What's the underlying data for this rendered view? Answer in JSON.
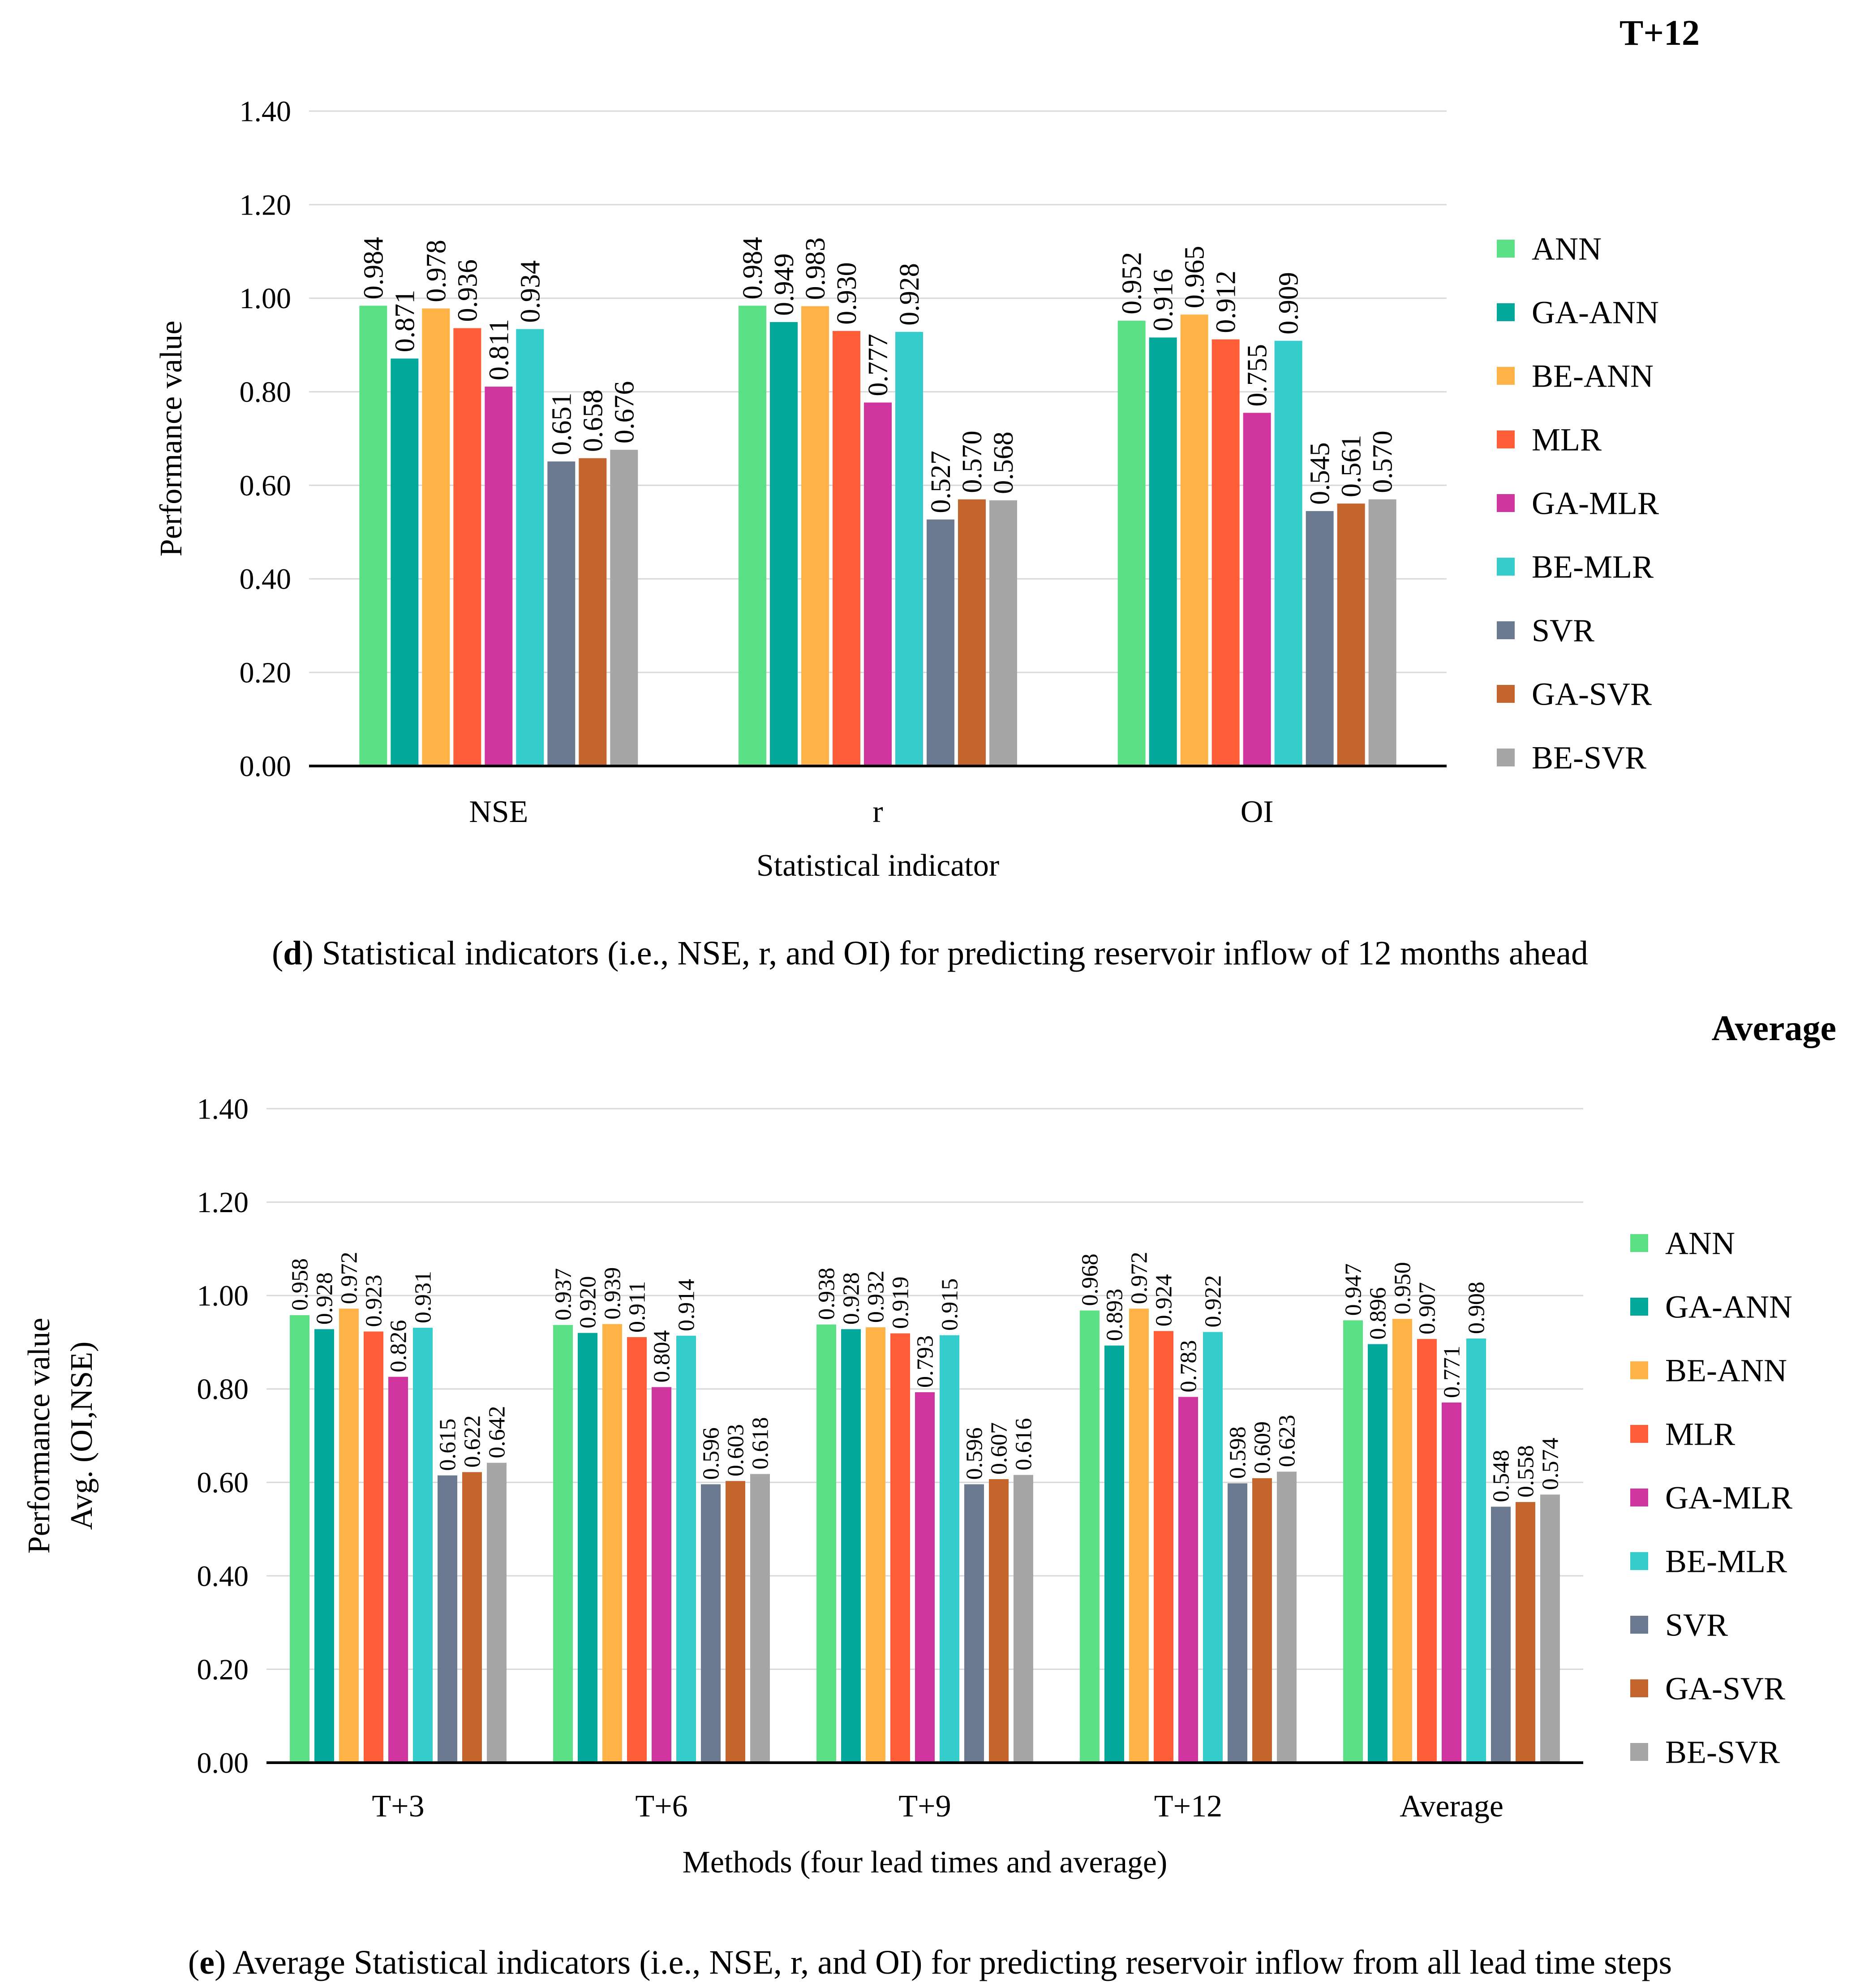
{
  "palette": {
    "ANN": "#5ce086",
    "GA-ANN": "#02a89a",
    "BE-ANN": "#ffb347",
    "MLR": "#ff5c38",
    "GA-MLR": "#d0349e",
    "BE-MLR": "#34cdcb",
    "SVR": "#6c7a91",
    "GA-SVR": "#c4652e",
    "BE-SVR": "#a6a6a6"
  },
  "chart_data": [
    {
      "type": "bar",
      "title": "T+12",
      "xlabel": "Statistical indicator",
      "ylabel": "Performance value",
      "ylim": [
        0,
        1.4
      ],
      "yticks": [
        "0.00",
        "0.20",
        "0.40",
        "0.60",
        "0.80",
        "1.00",
        "1.20",
        "1.40"
      ],
      "grid": true,
      "legend": "right",
      "categories": [
        "NSE",
        "r",
        "OI"
      ],
      "series": [
        {
          "name": "ANN",
          "values": [
            0.984,
            0.984,
            0.952
          ],
          "labels": [
            "0.984",
            "0.984",
            "0.952"
          ]
        },
        {
          "name": "GA-ANN",
          "values": [
            0.871,
            0.949,
            0.916
          ],
          "labels": [
            "0.871",
            "0.949",
            "0.916"
          ]
        },
        {
          "name": "BE-ANN",
          "values": [
            0.978,
            0.983,
            0.965
          ],
          "labels": [
            "0.978",
            "0.983",
            "0.965"
          ]
        },
        {
          "name": "MLR",
          "values": [
            0.936,
            0.93,
            0.912
          ],
          "labels": [
            "0.936",
            "0.930",
            "0.912"
          ]
        },
        {
          "name": "GA-MLR",
          "values": [
            0.811,
            0.777,
            0.755
          ],
          "labels": [
            "0.811",
            "0.777",
            "0.755"
          ]
        },
        {
          "name": "BE-MLR",
          "values": [
            0.934,
            0.928,
            0.909
          ],
          "labels": [
            "0.934",
            "0.928",
            "0.909"
          ]
        },
        {
          "name": "SVR",
          "values": [
            0.651,
            0.527,
            0.545
          ],
          "labels": [
            "0.651",
            "0.527",
            "0.545"
          ]
        },
        {
          "name": "GA-SVR",
          "values": [
            0.658,
            0.57,
            0.561
          ],
          "labels": [
            "0.658",
            "0.570",
            "0.561"
          ]
        },
        {
          "name": "BE-SVR",
          "values": [
            0.676,
            0.568,
            0.57
          ],
          "labels": [
            "0.676",
            "0.568",
            "0.570"
          ]
        }
      ]
    },
    {
      "type": "bar",
      "title": "Average",
      "xlabel": "Methods (four lead times and average)",
      "ylabel": "Performance value",
      "ylabel2": "Avg. (OI,NSE)",
      "ylim": [
        0,
        1.4
      ],
      "yticks": [
        "0.00",
        "0.20",
        "0.40",
        "0.60",
        "0.80",
        "1.00",
        "1.20",
        "1.40"
      ],
      "grid": true,
      "legend": "right",
      "categories": [
        "T+3",
        "T+6",
        "T+9",
        "T+12",
        "Average"
      ],
      "series": [
        {
          "name": "ANN",
          "values": [
            0.958,
            0.937,
            0.938,
            0.968,
            0.947
          ],
          "labels": [
            "0.958",
            "0.937",
            "0.938",
            "0.968",
            "0.947"
          ]
        },
        {
          "name": "GA-ANN",
          "values": [
            0.928,
            0.92,
            0.928,
            0.893,
            0.896
          ],
          "labels": [
            "0.928",
            "0.920",
            "0.928",
            "0.893",
            "0.896"
          ]
        },
        {
          "name": "BE-ANN",
          "values": [
            0.972,
            0.939,
            0.932,
            0.972,
            0.95
          ],
          "labels": [
            "0.972",
            "0.939",
            "0.932",
            "0.972",
            "0.950"
          ]
        },
        {
          "name": "MLR",
          "values": [
            0.923,
            0.911,
            0.919,
            0.924,
            0.907
          ],
          "labels": [
            "0.923",
            "0.911",
            "0.919",
            "0.924",
            "0.907"
          ]
        },
        {
          "name": "GA-MLR",
          "values": [
            0.826,
            0.804,
            0.793,
            0.783,
            0.771
          ],
          "labels": [
            "0.826",
            "0.804",
            "0.793",
            "0.783",
            "0.771"
          ]
        },
        {
          "name": "BE-MLR",
          "values": [
            0.931,
            0.914,
            0.915,
            0.922,
            0.908
          ],
          "labels": [
            "0.931",
            "0.914",
            "0.915",
            "0.922",
            "0.908"
          ]
        },
        {
          "name": "SVR",
          "values": [
            0.615,
            0.596,
            0.596,
            0.598,
            0.548
          ],
          "labels": [
            "0.615",
            "0.596",
            "0.596",
            "0.598",
            "0.548"
          ]
        },
        {
          "name": "GA-SVR",
          "values": [
            0.622,
            0.603,
            0.607,
            0.609,
            0.558
          ],
          "labels": [
            "0.622",
            "0.603",
            "0.607",
            "0.609",
            "0.558"
          ]
        },
        {
          "name": "BE-SVR",
          "values": [
            0.642,
            0.618,
            0.616,
            0.623,
            0.574
          ],
          "labels": [
            "0.642",
            "0.618",
            "0.616",
            "0.623",
            "0.574"
          ]
        }
      ]
    }
  ],
  "captions": {
    "d": {
      "letter": "d",
      "text": "Statistical indicators (i.e., NSE, r, and OI) for predicting reservoir inflow of 12 months ahead"
    },
    "e": {
      "letter": "e",
      "text": "Average Statistical indicators (i.e., NSE, r, and OI) for predicting reservoir inflow from all lead time steps"
    }
  }
}
